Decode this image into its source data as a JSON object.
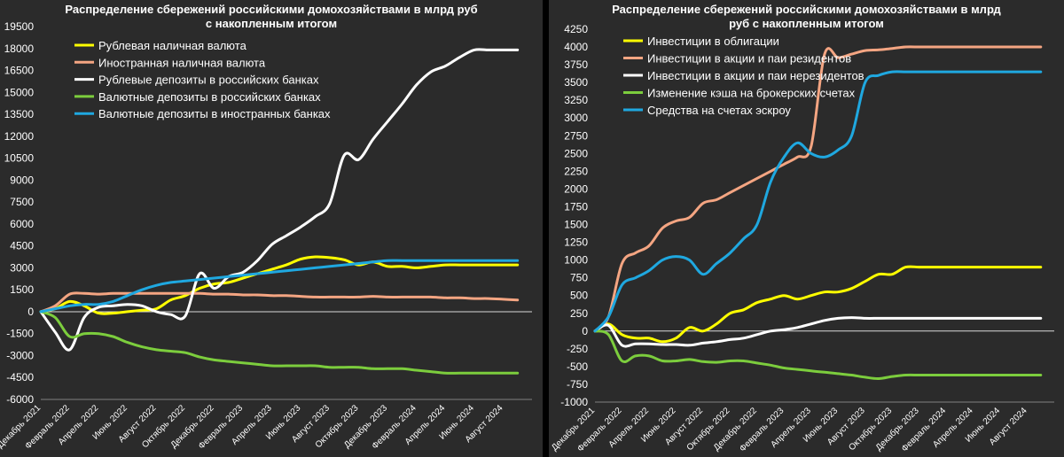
{
  "chart_data": [
    {
      "type": "line",
      "title_line1": "Распределение сбережений российскими домохозяйствами в млрд руб",
      "title_line2": "с накопленным итогом",
      "ylim": [
        -6000,
        19500
      ],
      "yticks": [
        -6000,
        -4500,
        -3000,
        -1500,
        0,
        1500,
        3000,
        4500,
        6000,
        7500,
        9000,
        10500,
        12000,
        13500,
        15000,
        16500,
        18000,
        19500
      ],
      "xlim": [
        0,
        34
      ],
      "xticks": [
        {
          "x": 0,
          "label": "Декабрь 2021"
        },
        {
          "x": 2,
          "label": "Февраль 2022"
        },
        {
          "x": 4,
          "label": "Апрель 2022"
        },
        {
          "x": 6,
          "label": "Июнь 2022"
        },
        {
          "x": 8,
          "label": "Август 2022"
        },
        {
          "x": 10,
          "label": "Октябрь 2022"
        },
        {
          "x": 12,
          "label": "Декабрь 2022"
        },
        {
          "x": 14,
          "label": "Февраль 2023"
        },
        {
          "x": 16,
          "label": "Апрель 2023"
        },
        {
          "x": 18,
          "label": "Июнь 2023"
        },
        {
          "x": 20,
          "label": "Август 2023"
        },
        {
          "x": 22,
          "label": "Октябрь 2023"
        },
        {
          "x": 24,
          "label": "Декабрь 2023"
        },
        {
          "x": 26,
          "label": "Февраль 2024"
        },
        {
          "x": 28,
          "label": "Апрель 2024"
        },
        {
          "x": 30,
          "label": "Июнь 2024"
        },
        {
          "x": 32,
          "label": "Август 2024"
        }
      ],
      "legend_position": "top-left",
      "grid": false,
      "series": [
        {
          "name": "Рублевая наличная валюта",
          "color": "#ffff00",
          "x": [
            0,
            1,
            2,
            3,
            4,
            5,
            6,
            7,
            8,
            9,
            10,
            11,
            12,
            13,
            14,
            15,
            16,
            17,
            18,
            19,
            20,
            21,
            22,
            23,
            24,
            25,
            26,
            27,
            28,
            29,
            30,
            31,
            32,
            33
          ],
          "y": [
            0,
            200,
            700,
            400,
            -100,
            -100,
            0,
            100,
            200,
            800,
            1100,
            1600,
            1900,
            2000,
            2300,
            2600,
            2900,
            3200,
            3600,
            3750,
            3700,
            3550,
            3200,
            3400,
            3100,
            3100,
            3000,
            3100,
            3200,
            3200,
            3200,
            3200,
            3200,
            3200
          ]
        },
        {
          "name": "Иностранная наличная валюта",
          "color": "#f4a582",
          "x": [
            0,
            1,
            2,
            3,
            4,
            5,
            6,
            7,
            8,
            9,
            10,
            11,
            12,
            13,
            14,
            15,
            16,
            17,
            18,
            19,
            20,
            21,
            22,
            23,
            24,
            25,
            26,
            27,
            28,
            29,
            30,
            31,
            32,
            33
          ],
          "y": [
            0,
            400,
            1200,
            1250,
            1200,
            1250,
            1250,
            1250,
            1250,
            1250,
            1250,
            1250,
            1200,
            1200,
            1150,
            1150,
            1100,
            1100,
            1050,
            1000,
            1000,
            1000,
            1000,
            1050,
            1000,
            1000,
            1000,
            1000,
            950,
            950,
            900,
            900,
            850,
            800
          ]
        },
        {
          "name": "Рублевые депозиты в российских банках",
          "color": "#ffffff",
          "x": [
            0,
            1,
            2,
            3,
            4,
            5,
            6,
            7,
            8,
            9,
            10,
            11,
            12,
            13,
            14,
            15,
            16,
            17,
            18,
            19,
            20,
            21,
            22,
            23,
            24,
            25,
            26,
            27,
            28,
            29,
            30,
            31,
            32,
            33
          ],
          "y": [
            0,
            -1400,
            -2600,
            -400,
            300,
            400,
            500,
            400,
            0,
            -200,
            -300,
            2600,
            1600,
            2400,
            2700,
            3500,
            4600,
            5200,
            5800,
            6500,
            7400,
            10700,
            10400,
            11800,
            13000,
            14200,
            15500,
            16400,
            16800,
            17400,
            17900,
            17900,
            17900,
            17900
          ]
        },
        {
          "name": "Валютные депозиты в российских банках",
          "color": "#7ccd3d",
          "x": [
            0,
            1,
            2,
            3,
            4,
            5,
            6,
            7,
            8,
            9,
            10,
            11,
            12,
            13,
            14,
            15,
            16,
            17,
            18,
            19,
            20,
            21,
            22,
            23,
            24,
            25,
            26,
            27,
            28,
            29,
            30,
            31,
            32,
            33
          ],
          "y": [
            0,
            -400,
            -1700,
            -1500,
            -1500,
            -1700,
            -2100,
            -2400,
            -2600,
            -2700,
            -2800,
            -3100,
            -3300,
            -3400,
            -3500,
            -3600,
            -3700,
            -3700,
            -3700,
            -3700,
            -3800,
            -3800,
            -3800,
            -3900,
            -3900,
            -3900,
            -4000,
            -4100,
            -4200,
            -4200,
            -4200,
            -4200,
            -4200,
            -4200
          ]
        },
        {
          "name": "Валютные депозиты в иностранных банках",
          "color": "#1fa8e0",
          "x": [
            0,
            1,
            2,
            3,
            4,
            5,
            6,
            7,
            8,
            9,
            10,
            11,
            12,
            13,
            14,
            15,
            16,
            17,
            18,
            19,
            20,
            21,
            22,
            23,
            24,
            25,
            26,
            27,
            28,
            29,
            30,
            31,
            32,
            33
          ],
          "y": [
            0,
            200,
            400,
            500,
            500,
            700,
            1100,
            1500,
            1800,
            2000,
            2100,
            2200,
            2300,
            2400,
            2500,
            2600,
            2700,
            2800,
            2900,
            3000,
            3100,
            3200,
            3300,
            3400,
            3500,
            3500,
            3500,
            3500,
            3500,
            3500,
            3500,
            3500,
            3500,
            3500
          ]
        }
      ]
    },
    {
      "type": "line",
      "title_line1": "Распределение сбережений российскими домохозяйствами в млрд",
      "title_line2": "руб с накопленным итогом",
      "ylim": [
        -1000,
        4250
      ],
      "yticks": [
        -1000,
        -750,
        -500,
        -250,
        0,
        250,
        500,
        750,
        1000,
        1250,
        1500,
        1750,
        2000,
        2250,
        2500,
        2750,
        3000,
        3250,
        3500,
        3750,
        4000,
        4250
      ],
      "xlim": [
        0,
        34
      ],
      "xticks": [
        {
          "x": 0,
          "label": "Декабрь 2021"
        },
        {
          "x": 2,
          "label": "Февраль 2022"
        },
        {
          "x": 4,
          "label": "Апрель 2022"
        },
        {
          "x": 6,
          "label": "Июнь 2022"
        },
        {
          "x": 8,
          "label": "Август 2022"
        },
        {
          "x": 10,
          "label": "Октябрь 2022"
        },
        {
          "x": 12,
          "label": "Декабрь 2022"
        },
        {
          "x": 14,
          "label": "Февраль 2023"
        },
        {
          "x": 16,
          "label": "Апрель 2023"
        },
        {
          "x": 18,
          "label": "Июнь 2023"
        },
        {
          "x": 20,
          "label": "Август 2023"
        },
        {
          "x": 22,
          "label": "Октябрь 2023"
        },
        {
          "x": 24,
          "label": "Декабрь 2023"
        },
        {
          "x": 26,
          "label": "Февраль 2024"
        },
        {
          "x": 28,
          "label": "Апрель 2024"
        },
        {
          "x": 30,
          "label": "Июнь 2024"
        },
        {
          "x": 32,
          "label": "Август 2024"
        }
      ],
      "legend_position": "top-left",
      "grid": false,
      "series": [
        {
          "name": "Инвестиции в облигации",
          "color": "#ffff00",
          "x": [
            0,
            1,
            2,
            3,
            4,
            5,
            6,
            7,
            8,
            9,
            10,
            11,
            12,
            13,
            14,
            15,
            16,
            17,
            18,
            19,
            20,
            21,
            22,
            23,
            24,
            25,
            26,
            27,
            28,
            29,
            30,
            31,
            32,
            33
          ],
          "y": [
            0,
            100,
            -50,
            -100,
            -100,
            -150,
            -100,
            50,
            0,
            100,
            250,
            300,
            400,
            450,
            500,
            450,
            500,
            550,
            550,
            600,
            700,
            800,
            800,
            900,
            900,
            900,
            900,
            900,
            900,
            900,
            900,
            900,
            900,
            900
          ]
        },
        {
          "name": "Инвестиции в акции и паи резидентов",
          "color": "#f4a582",
          "x": [
            0,
            1,
            2,
            3,
            4,
            5,
            6,
            7,
            8,
            9,
            10,
            11,
            12,
            13,
            14,
            15,
            16,
            17,
            18,
            19,
            20,
            21,
            22,
            23,
            24,
            25,
            26,
            27,
            28,
            29,
            30,
            31,
            32,
            33
          ],
          "y": [
            0,
            200,
            950,
            1100,
            1200,
            1450,
            1550,
            1600,
            1800,
            1850,
            1950,
            2050,
            2150,
            2250,
            2350,
            2450,
            2600,
            3900,
            3850,
            3900,
            3950,
            3960,
            3980,
            4000,
            4000,
            4000,
            4000,
            4000,
            4000,
            4000,
            4000,
            4000,
            4000,
            4000
          ]
        },
        {
          "name": "Инвестиции в акции и паи нерезидентов",
          "color": "#ffffff",
          "x": [
            0,
            1,
            2,
            3,
            4,
            5,
            6,
            7,
            8,
            9,
            10,
            11,
            12,
            13,
            14,
            15,
            16,
            17,
            18,
            19,
            20,
            21,
            22,
            23,
            24,
            25,
            26,
            27,
            28,
            29,
            30,
            31,
            32,
            33
          ],
          "y": [
            0,
            80,
            -200,
            -180,
            -180,
            -190,
            -190,
            -200,
            -170,
            -150,
            -120,
            -100,
            -50,
            0,
            20,
            50,
            100,
            150,
            180,
            190,
            180,
            180,
            180,
            180,
            180,
            180,
            180,
            180,
            180,
            180,
            180,
            180,
            180,
            180
          ]
        },
        {
          "name": "Изменение кэша на брокерских счетах",
          "color": "#7ccd3d",
          "x": [
            0,
            1,
            2,
            3,
            4,
            5,
            6,
            7,
            8,
            9,
            10,
            11,
            12,
            13,
            14,
            15,
            16,
            17,
            18,
            19,
            20,
            21,
            22,
            23,
            24,
            25,
            26,
            27,
            28,
            29,
            30,
            31,
            32,
            33
          ],
          "y": [
            0,
            -50,
            -420,
            -350,
            -350,
            -420,
            -420,
            -400,
            -430,
            -440,
            -420,
            -420,
            -450,
            -480,
            -520,
            -540,
            -560,
            -580,
            -600,
            -620,
            -650,
            -670,
            -640,
            -620,
            -620,
            -620,
            -620,
            -620,
            -620,
            -620,
            -620,
            -620,
            -620,
            -620
          ]
        },
        {
          "name": "Средства на счетах эскроу",
          "color": "#1fa8e0",
          "x": [
            0,
            1,
            2,
            3,
            4,
            5,
            6,
            7,
            8,
            9,
            10,
            11,
            12,
            13,
            14,
            15,
            16,
            17,
            18,
            19,
            20,
            21,
            22,
            23,
            24,
            25,
            26,
            27,
            28,
            29,
            30,
            31,
            32,
            33
          ],
          "y": [
            0,
            200,
            650,
            750,
            850,
            1000,
            1050,
            1000,
            800,
            950,
            1100,
            1300,
            1500,
            2100,
            2450,
            2650,
            2500,
            2450,
            2550,
            2750,
            3500,
            3600,
            3650,
            3650,
            3650,
            3650,
            3650,
            3650,
            3650,
            3650,
            3650,
            3650,
            3650,
            3650
          ]
        }
      ]
    }
  ]
}
